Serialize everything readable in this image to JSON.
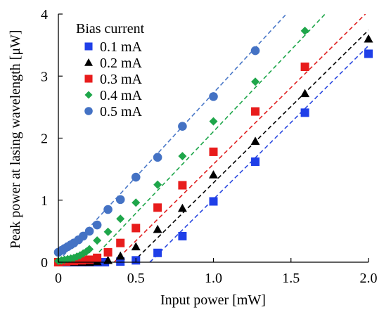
{
  "chart_data": {
    "type": "scatter",
    "title": "",
    "xlabel": "Input power [mW]",
    "ylabel": "Peak power at lasing wavelength [μW]",
    "xlim": [
      0,
      2.0
    ],
    "ylim": [
      0,
      4
    ],
    "xticks": [
      "0",
      "0.5",
      "1.0",
      "1.5",
      "2.0"
    ],
    "yticks": [
      "0",
      "1",
      "2",
      "3",
      "4"
    ],
    "grid": false,
    "legend": {
      "title": "Bias current",
      "placement": "top-left"
    },
    "series": [
      {
        "name": "0.1 mA",
        "marker": "square",
        "color": "#1f3fe8",
        "fit_color": "#2a48e0",
        "fit": [
          [
            0.59,
            0
          ],
          [
            2.0,
            3.49
          ]
        ],
        "points": [
          [
            0.0,
            0.0
          ],
          [
            0.05,
            0.0
          ],
          [
            0.1,
            0.0
          ],
          [
            0.15,
            0.0
          ],
          [
            0.2,
            0.0
          ],
          [
            0.25,
            0.0
          ],
          [
            0.3,
            0.0
          ],
          [
            0.4,
            0.01
          ],
          [
            0.5,
            0.03
          ],
          [
            0.64,
            0.15
          ],
          [
            0.8,
            0.42
          ],
          [
            1.0,
            0.98
          ],
          [
            1.27,
            1.62
          ],
          [
            1.59,
            2.41
          ],
          [
            2.0,
            3.36
          ]
        ]
      },
      {
        "name": "0.2 mA",
        "marker": "triangle",
        "color": "#000000",
        "fit_color": "#000000",
        "fit": [
          [
            0.48,
            0
          ],
          [
            2.0,
            3.74
          ]
        ],
        "points": [
          [
            0.0,
            0.0
          ],
          [
            0.05,
            0.0
          ],
          [
            0.1,
            0.0
          ],
          [
            0.15,
            0.0
          ],
          [
            0.2,
            0.0
          ],
          [
            0.25,
            0.01
          ],
          [
            0.32,
            0.03
          ],
          [
            0.4,
            0.1
          ],
          [
            0.5,
            0.25
          ],
          [
            0.64,
            0.53
          ],
          [
            0.8,
            0.87
          ],
          [
            1.0,
            1.41
          ],
          [
            1.27,
            1.95
          ],
          [
            1.59,
            2.72
          ],
          [
            2.0,
            3.6
          ]
        ]
      },
      {
        "name": "0.3 mA",
        "marker": "square",
        "color": "#e81c1c",
        "fit_color": "#e02020",
        "fit": [
          [
            0.36,
            0
          ],
          [
            1.98,
            4.0
          ]
        ],
        "points": [
          [
            0.0,
            0.0
          ],
          [
            0.05,
            0.01
          ],
          [
            0.1,
            0.02
          ],
          [
            0.15,
            0.03
          ],
          [
            0.2,
            0.04
          ],
          [
            0.25,
            0.07
          ],
          [
            0.32,
            0.16
          ],
          [
            0.4,
            0.31
          ],
          [
            0.5,
            0.55
          ],
          [
            0.64,
            0.88
          ],
          [
            0.8,
            1.24
          ],
          [
            1.0,
            1.78
          ],
          [
            1.27,
            2.43
          ],
          [
            1.59,
            3.15
          ]
        ]
      },
      {
        "name": "0.4 mA",
        "marker": "diamond",
        "color": "#1ea64a",
        "fit_color": "#1ea64a",
        "fit": [
          [
            0.2,
            0
          ],
          [
            1.72,
            4.0
          ]
        ],
        "points": [
          [
            0.0,
            0.02
          ],
          [
            0.02,
            0.03
          ],
          [
            0.04,
            0.04
          ],
          [
            0.06,
            0.05
          ],
          [
            0.08,
            0.06
          ],
          [
            0.1,
            0.07
          ],
          [
            0.12,
            0.09
          ],
          [
            0.14,
            0.11
          ],
          [
            0.16,
            0.14
          ],
          [
            0.18,
            0.17
          ],
          [
            0.2,
            0.21
          ],
          [
            0.25,
            0.35
          ],
          [
            0.32,
            0.49
          ],
          [
            0.4,
            0.7
          ],
          [
            0.5,
            0.96
          ],
          [
            0.64,
            1.25
          ],
          [
            0.8,
            1.71
          ],
          [
            1.0,
            2.27
          ],
          [
            1.27,
            2.91
          ],
          [
            1.59,
            3.73
          ]
        ]
      },
      {
        "name": "0.5 mA",
        "marker": "circle",
        "color": "#4472c4",
        "fit_color": "#4a78c8",
        "fit": [
          [
            0.0,
            0.02
          ],
          [
            1.47,
            4.0
          ]
        ],
        "points": [
          [
            0.0,
            0.16
          ],
          [
            0.02,
            0.19
          ],
          [
            0.04,
            0.22
          ],
          [
            0.06,
            0.25
          ],
          [
            0.08,
            0.28
          ],
          [
            0.1,
            0.31
          ],
          [
            0.13,
            0.36
          ],
          [
            0.16,
            0.42
          ],
          [
            0.2,
            0.5
          ],
          [
            0.25,
            0.6
          ],
          [
            0.32,
            0.85
          ],
          [
            0.4,
            1.01
          ],
          [
            0.5,
            1.37
          ],
          [
            0.64,
            1.69
          ],
          [
            0.8,
            2.19
          ],
          [
            1.0,
            2.67
          ],
          [
            1.27,
            3.41
          ]
        ]
      }
    ]
  }
}
